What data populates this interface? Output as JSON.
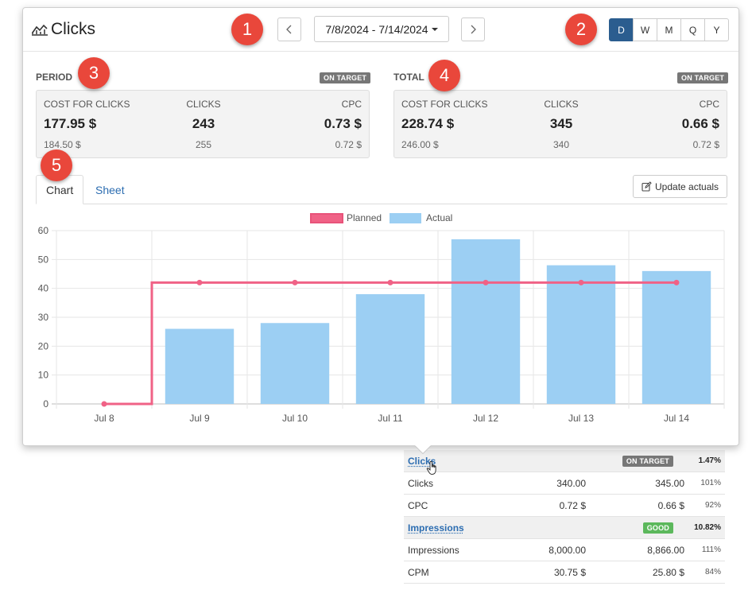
{
  "header": {
    "title": "Clicks",
    "date_range": "7/8/2024 - 7/14/2024",
    "periods": [
      {
        "label": "D",
        "active": true
      },
      {
        "label": "W",
        "active": false
      },
      {
        "label": "M",
        "active": false
      },
      {
        "label": "Q",
        "active": false
      },
      {
        "label": "Y",
        "active": false
      }
    ]
  },
  "markers": [
    "1",
    "2",
    "3",
    "4",
    "5"
  ],
  "period": {
    "label": "PERIOD",
    "badge": "ON TARGET",
    "columns": [
      {
        "header": "COST FOR CLICKS",
        "actual": "177.95 $",
        "planned": "184.50 $"
      },
      {
        "header": "CLICKS",
        "actual": "243",
        "planned": "255"
      },
      {
        "header": "CPC",
        "actual": "0.73 $",
        "planned": "0.72 $"
      }
    ]
  },
  "total": {
    "label": "TOTAL",
    "badge": "ON TARGET",
    "columns": [
      {
        "header": "COST FOR CLICKS",
        "actual": "228.74 $",
        "planned": "246.00 $"
      },
      {
        "header": "CLICKS",
        "actual": "345",
        "planned": "340"
      },
      {
        "header": "CPC",
        "actual": "0.66 $",
        "planned": "0.72 $"
      }
    ]
  },
  "tabs": [
    "Chart",
    "Sheet"
  ],
  "update_label": "Update actuals",
  "colors": {
    "planned": "#f06286",
    "actual": "#9ccff3",
    "active_period": "#2b5d8f"
  },
  "chart_data": {
    "type": "bar",
    "categories": [
      "Jul 8",
      "Jul 9",
      "Jul 10",
      "Jul 11",
      "Jul 12",
      "Jul 13",
      "Jul 14"
    ],
    "series": [
      {
        "name": "Planned",
        "type": "line-step",
        "values": [
          0,
          42,
          42,
          42,
          42,
          42,
          42
        ]
      },
      {
        "name": "Actual",
        "type": "bar",
        "values": [
          0,
          26,
          28,
          38,
          57,
          48,
          46
        ]
      }
    ],
    "yticks": [
      "0",
      "10",
      "20",
      "30",
      "40",
      "50",
      "60"
    ],
    "ylim": [
      0,
      60
    ],
    "grid": true,
    "legend": "top-center"
  },
  "background_table": {
    "rows": [
      {
        "type": "section",
        "label": "Clicks",
        "badge": "ON TARGET",
        "badge_color": "gray",
        "pct": "1.47%"
      },
      {
        "type": "row",
        "label": "Clicks",
        "v1": "340.00",
        "v2": "345.00",
        "pct": "101%"
      },
      {
        "type": "row",
        "label": "CPC",
        "v1": "0.72 $",
        "v2": "0.66 $",
        "pct": "92%"
      },
      {
        "type": "section",
        "label": "Impressions",
        "badge": "GOOD",
        "badge_color": "green",
        "pct": "10.82%"
      },
      {
        "type": "row",
        "label": "Impressions",
        "v1": "8,000.00",
        "v2": "8,866.00",
        "pct": "111%"
      },
      {
        "type": "row",
        "label": "CPM",
        "v1": "30.75 $",
        "v2": "25.80 $",
        "pct": "84%"
      }
    ]
  }
}
